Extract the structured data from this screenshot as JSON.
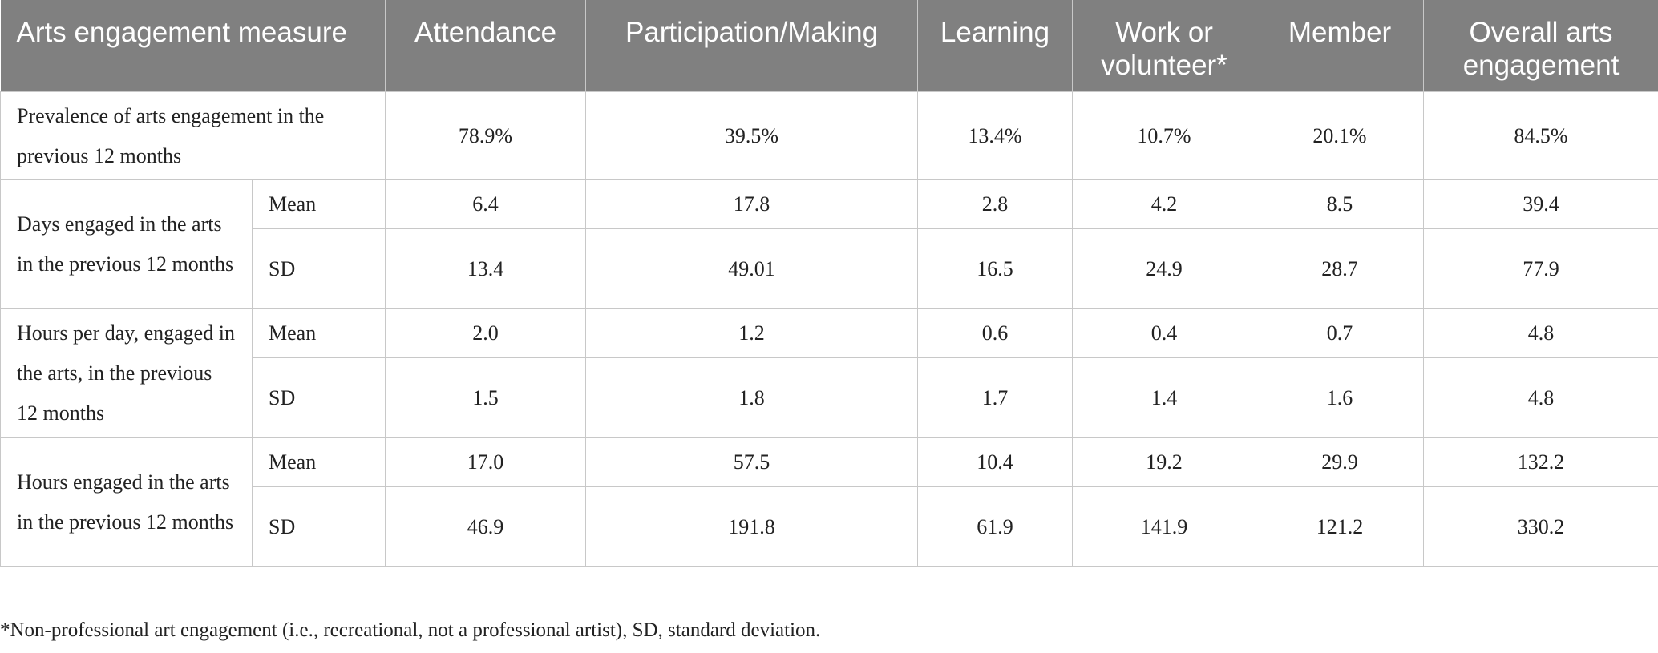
{
  "table": {
    "headers": [
      "Arts engagement measure",
      "Attendance",
      "Participation/Making",
      "Learning",
      "Work or volunteer*",
      "Member",
      "Overall arts engagement"
    ],
    "prevalence": {
      "label": "Prevalence of arts engagement in the previous 12 months",
      "values": [
        "78.9%",
        "39.5%",
        "13.4%",
        "10.7%",
        "20.1%",
        "84.5%"
      ]
    },
    "groups": [
      {
        "label": "Days engaged in the arts in the previous 12 months",
        "rows": [
          {
            "stat": "Mean",
            "values": [
              "6.4",
              "17.8",
              "2.8",
              "4.2",
              "8.5",
              "39.4"
            ]
          },
          {
            "stat": "SD",
            "values": [
              "13.4",
              "49.01",
              "16.5",
              "24.9",
              "28.7",
              "77.9"
            ]
          }
        ]
      },
      {
        "label": "Hours per day, engaged in the arts, in the previous 12 months",
        "rows": [
          {
            "stat": "Mean",
            "values": [
              "2.0",
              "1.2",
              "0.6",
              "0.4",
              "0.7",
              "4.8"
            ]
          },
          {
            "stat": "SD",
            "values": [
              "1.5",
              "1.8",
              "1.7",
              "1.4",
              "1.6",
              "4.8"
            ]
          }
        ]
      },
      {
        "label": "Hours engaged in the arts in the previous 12 months",
        "rows": [
          {
            "stat": "Mean",
            "values": [
              "17.0",
              "57.5",
              "10.4",
              "19.2",
              "29.9",
              "132.2"
            ]
          },
          {
            "stat": "SD",
            "values": [
              "46.9",
              "191.8",
              "61.9",
              "141.9",
              "121.2",
              "330.2"
            ]
          }
        ]
      }
    ]
  },
  "footnote": "*Non-professional art engagement (i.e., recreational, not a professional artist), SD, standard deviation."
}
